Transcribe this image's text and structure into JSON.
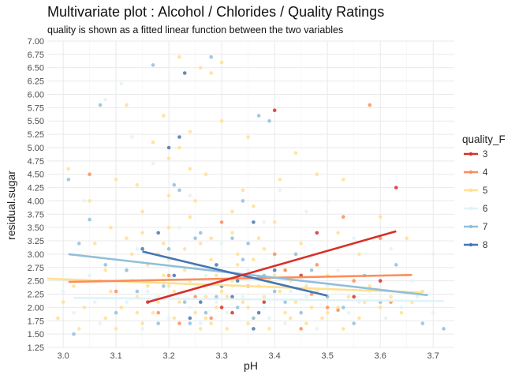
{
  "chart_data": {
    "type": "scatter",
    "title": "Multivariate plot : Alcohol / Chlorides / Quality Ratings",
    "subtitle": "quality is shown as a fitted linear function between the two variables",
    "xlabel": "pH",
    "ylabel": "residual.sugar",
    "xlim": [
      2.97,
      3.74
    ],
    "ylim": [
      1.25,
      7.0
    ],
    "xticks": [
      "3.0",
      "3.1",
      "3.2",
      "3.3",
      "3.4",
      "3.5",
      "3.6",
      "3.7"
    ],
    "yticks": [
      "1.25",
      "1.50",
      "1.75",
      "2.00",
      "2.25",
      "2.50",
      "2.75",
      "3.00",
      "3.25",
      "3.50",
      "3.75",
      "4.00",
      "4.25",
      "4.50",
      "4.75",
      "5.00",
      "5.25",
      "5.50",
      "5.75",
      "6.00",
      "6.25",
      "6.50",
      "6.75",
      "7.00"
    ],
    "grid": true,
    "legend": {
      "title": "quality_F",
      "position": "right"
    },
    "series": [
      {
        "name": "3",
        "color": "#d73027",
        "fit": [
          [
            3.16,
            2.1
          ],
          [
            3.63,
            3.43
          ]
        ],
        "points": [
          [
            3.16,
            2.1
          ],
          [
            3.4,
            5.7
          ],
          [
            3.63,
            4.25
          ],
          [
            3.48,
            3.4
          ],
          [
            3.32,
            1.9
          ],
          [
            3.38,
            2.1
          ],
          [
            3.45,
            2.6
          ],
          [
            3.55,
            2.2
          ],
          [
            3.3,
            2.0
          ],
          [
            3.6,
            2.5
          ]
        ]
      },
      {
        "name": "4",
        "color": "#fc8d59",
        "fit": [
          [
            3.01,
            2.48
          ],
          [
            3.66,
            2.61
          ]
        ],
        "points": [
          [
            3.05,
            4.5
          ],
          [
            3.4,
            3.0
          ],
          [
            3.58,
            5.8
          ],
          [
            3.48,
            2.8
          ],
          [
            3.53,
            3.7
          ],
          [
            3.6,
            3.3
          ],
          [
            3.2,
            2.6
          ],
          [
            3.1,
            2.3
          ],
          [
            3.35,
            2.4
          ],
          [
            3.5,
            2.0
          ],
          [
            3.25,
            2.2
          ],
          [
            3.42,
            2.7
          ],
          [
            3.55,
            2.5
          ],
          [
            3.45,
            1.6
          ],
          [
            3.3,
            3.6
          ],
          [
            3.18,
            1.9
          ],
          [
            3.62,
            2.1
          ],
          [
            3.22,
            1.7
          ],
          [
            3.37,
            2.55
          ],
          [
            3.28,
            1.8
          ],
          [
            3.47,
            2.25
          ],
          [
            3.52,
            1.95
          ]
        ]
      },
      {
        "name": "5",
        "color": "#fee090",
        "fit": [
          [
            2.97,
            2.54
          ],
          [
            3.68,
            2.28
          ]
        ],
        "points": [
          [
            3.22,
            6.7
          ],
          [
            3.26,
            6.5
          ],
          [
            3.28,
            6.4
          ],
          [
            3.3,
            6.6
          ],
          [
            3.12,
            5.8
          ],
          [
            3.19,
            5.6
          ],
          [
            3.24,
            5.3
          ],
          [
            3.2,
            4.8
          ],
          [
            3.24,
            4.6
          ],
          [
            3.1,
            4.4
          ],
          [
            3.2,
            4.1
          ],
          [
            3.05,
            4.0
          ],
          [
            3.15,
            3.8
          ],
          [
            3.01,
            4.6
          ],
          [
            3.26,
            3.2
          ],
          [
            3.34,
            4.2
          ],
          [
            3.36,
            3.9
          ],
          [
            3.4,
            3.6
          ],
          [
            3.32,
            3.4
          ],
          [
            3.2,
            3.5
          ],
          [
            3.12,
            3.3
          ],
          [
            3.06,
            3.2
          ],
          [
            3.18,
            3.0
          ],
          [
            3.28,
            2.9
          ],
          [
            3.38,
            3.1
          ],
          [
            3.42,
            2.7
          ],
          [
            3.45,
            3.2
          ],
          [
            3.52,
            3.4
          ],
          [
            3.56,
            3.0
          ],
          [
            3.5,
            2.6
          ],
          [
            3.46,
            2.4
          ],
          [
            3.24,
            3.7
          ],
          [
            3.16,
            2.8
          ],
          [
            3.08,
            2.7
          ],
          [
            3.02,
            2.4
          ],
          [
            3.04,
            2.0
          ],
          [
            3.08,
            1.8
          ],
          [
            3.1,
            1.6
          ],
          [
            3.14,
            2.2
          ],
          [
            3.2,
            2.4
          ],
          [
            3.22,
            2.1
          ],
          [
            3.25,
            1.9
          ],
          [
            3.28,
            1.7
          ],
          [
            3.3,
            2.3
          ],
          [
            3.32,
            2.5
          ],
          [
            3.35,
            2.0
          ],
          [
            3.36,
            1.8
          ],
          [
            3.38,
            2.2
          ],
          [
            3.4,
            2.6
          ],
          [
            3.42,
            1.9
          ],
          [
            3.44,
            2.1
          ],
          [
            3.46,
            1.7
          ],
          [
            3.48,
            2.3
          ],
          [
            3.5,
            1.9
          ],
          [
            3.52,
            2.0
          ],
          [
            3.54,
            2.2
          ],
          [
            3.56,
            1.8
          ],
          [
            3.58,
            2.4
          ],
          [
            3.6,
            2.0
          ],
          [
            3.62,
            2.2
          ],
          [
            3.64,
            1.9
          ],
          [
            3.66,
            2.1
          ],
          [
            3.68,
            2.3
          ],
          [
            3.13,
            2.5
          ],
          [
            3.17,
            1.9
          ],
          [
            3.19,
            2.6
          ],
          [
            3.21,
            1.8
          ],
          [
            3.23,
            2.7
          ],
          [
            3.27,
            2.2
          ],
          [
            3.29,
            2.0
          ],
          [
            3.31,
            1.6
          ],
          [
            3.33,
            2.8
          ],
          [
            3.37,
            2.4
          ],
          [
            3.39,
            1.6
          ],
          [
            3.41,
            2.3
          ],
          [
            3.43,
            1.8
          ],
          [
            3.47,
            2.0
          ],
          [
            3.11,
            2.0
          ],
          [
            3.09,
            2.3
          ],
          [
            3.07,
            2.5
          ],
          [
            3.15,
            1.7
          ],
          [
            3.24,
            2.5
          ],
          [
            3.26,
            1.6
          ],
          [
            3.34,
            2.1
          ],
          [
            3.29,
            2.6
          ],
          [
            3.21,
            2.3
          ],
          [
            3.18,
            2.1
          ],
          [
            3.16,
            2.4
          ],
          [
            3.14,
            1.9
          ],
          [
            3.12,
            2.7
          ],
          [
            3.27,
            1.8
          ],
          [
            3.31,
            2.2
          ],
          [
            3.35,
            1.7
          ],
          [
            3.39,
            2.5
          ],
          [
            3.43,
            2.5
          ],
          [
            3.49,
            1.8
          ],
          [
            3.53,
            1.6
          ],
          [
            3.57,
            2.1
          ],
          [
            2.99,
            1.8
          ],
          [
            3.0,
            2.1
          ],
          [
            3.03,
            1.6
          ],
          [
            3.22,
            5.0
          ],
          [
            3.27,
            4.5
          ],
          [
            3.3,
            5.5
          ],
          [
            3.14,
            4.3
          ],
          [
            3.17,
            5.1
          ],
          [
            3.35,
            5.2
          ],
          [
            3.44,
            4.9
          ],
          [
            3.48,
            4.5
          ],
          [
            3.6,
            3.7
          ],
          [
            3.65,
            3.3
          ],
          [
            3.53,
            4.4
          ],
          [
            3.09,
            3.5
          ],
          [
            3.25,
            4.0
          ],
          [
            3.37,
            3.3
          ],
          [
            3.41,
            4.4
          ],
          [
            3.15,
            3.4
          ],
          [
            3.32,
            3.8
          ],
          [
            3.28,
            3.3
          ],
          [
            3.23,
            3.1
          ],
          [
            3.19,
            3.2
          ],
          [
            3.33,
            3.0
          ],
          [
            3.36,
            2.9
          ],
          [
            3.44,
            3.0
          ],
          [
            3.25,
            2.8
          ],
          [
            3.13,
            3.0
          ],
          [
            3.2,
            2.9
          ]
        ]
      },
      {
        "name": "6",
        "color": "#e0f3f8",
        "fit": [
          [
            3.02,
            2.18
          ],
          [
            3.72,
            2.12
          ]
        ],
        "points": [
          [
            3.08,
            5.9
          ],
          [
            3.13,
            5.2
          ],
          [
            3.11,
            6.2
          ],
          [
            3.17,
            4.7
          ],
          [
            3.24,
            4.1
          ],
          [
            3.04,
            4.0
          ],
          [
            3.41,
            4.2
          ],
          [
            3.5,
            4.0
          ],
          [
            3.38,
            3.6
          ],
          [
            3.55,
            3.3
          ],
          [
            3.62,
            3.1
          ],
          [
            3.7,
            3.0
          ],
          [
            3.46,
            3.8
          ],
          [
            3.3,
            3.2
          ],
          [
            3.22,
            3.5
          ],
          [
            3.14,
            3.1
          ],
          [
            3.1,
            2.9
          ],
          [
            3.05,
            2.6
          ],
          [
            3.0,
            2.3
          ],
          [
            3.02,
            1.9
          ],
          [
            3.07,
            1.7
          ],
          [
            3.12,
            2.1
          ],
          [
            3.16,
            2.3
          ],
          [
            3.2,
            1.8
          ],
          [
            3.24,
            2.0
          ],
          [
            3.28,
            2.4
          ],
          [
            3.31,
            1.9
          ],
          [
            3.34,
            2.2
          ],
          [
            3.38,
            2.0
          ],
          [
            3.42,
            1.7
          ],
          [
            3.46,
            2.2
          ],
          [
            3.5,
            2.4
          ],
          [
            3.54,
            1.9
          ],
          [
            3.58,
            2.3
          ],
          [
            3.61,
            1.8
          ],
          [
            3.64,
            2.0
          ],
          [
            3.67,
            2.2
          ],
          [
            3.7,
            1.9
          ],
          [
            3.72,
            1.6
          ],
          [
            3.66,
            2.5
          ],
          [
            3.52,
            2.7
          ],
          [
            3.45,
            2.6
          ],
          [
            3.35,
            2.7
          ],
          [
            3.27,
            2.6
          ],
          [
            3.19,
            2.5
          ],
          [
            3.15,
            1.6
          ],
          [
            3.26,
            1.7
          ],
          [
            3.39,
            1.8
          ],
          [
            3.48,
            1.6
          ],
          [
            3.56,
            2.1
          ],
          [
            3.32,
            2.4
          ],
          [
            3.18,
            2.2
          ],
          [
            3.06,
            2.1
          ],
          [
            3.43,
            2.3
          ],
          [
            3.29,
            2.1
          ]
        ]
      },
      {
        "name": "7",
        "color": "#91bfdb",
        "fit": [
          [
            3.01,
            3.0
          ],
          [
            3.69,
            2.23
          ]
        ],
        "points": [
          [
            3.07,
            5.8
          ],
          [
            3.28,
            6.7
          ],
          [
            3.17,
            6.55
          ],
          [
            3.01,
            4.4
          ],
          [
            3.03,
            3.2
          ],
          [
            3.05,
            3.65
          ],
          [
            3.08,
            2.8
          ],
          [
            3.12,
            2.7
          ],
          [
            3.2,
            3.1
          ],
          [
            3.21,
            4.3
          ],
          [
            3.22,
            4.2
          ],
          [
            3.25,
            3.3
          ],
          [
            3.26,
            3.4
          ],
          [
            3.32,
            3.3
          ],
          [
            3.35,
            3.2
          ],
          [
            3.37,
            5.6
          ],
          [
            3.39,
            5.5
          ],
          [
            3.34,
            4.0
          ],
          [
            3.34,
            2.9
          ],
          [
            3.44,
            3.0
          ],
          [
            3.47,
            2.7
          ],
          [
            3.57,
            2.6
          ],
          [
            3.63,
            2.8
          ],
          [
            3.68,
            1.7
          ],
          [
            3.72,
            1.6
          ],
          [
            3.02,
            1.5
          ],
          [
            3.1,
            1.9
          ],
          [
            3.14,
            2.3
          ],
          [
            3.18,
            1.7
          ],
          [
            3.23,
            2.1
          ],
          [
            3.27,
            1.9
          ],
          [
            3.3,
            2.5
          ],
          [
            3.33,
            2.0
          ],
          [
            3.36,
            1.8
          ],
          [
            3.4,
            2.3
          ],
          [
            3.42,
            2.1
          ],
          [
            3.45,
            1.9
          ],
          [
            3.5,
            2.2
          ],
          [
            3.53,
            2.0
          ],
          [
            3.55,
            1.7
          ],
          [
            3.6,
            2.1
          ],
          [
            3.24,
            1.7
          ],
          [
            3.19,
            2.4
          ],
          [
            3.29,
            2.2
          ],
          [
            3.38,
            2.6
          ]
        ]
      },
      {
        "name": "8",
        "color": "#4575b4",
        "fit": [
          [
            3.15,
            3.05
          ],
          [
            3.5,
            2.22
          ]
        ],
        "points": [
          [
            3.23,
            6.4
          ],
          [
            3.22,
            5.2
          ],
          [
            3.36,
            3.6
          ],
          [
            3.2,
            5.0
          ],
          [
            3.18,
            3.4
          ],
          [
            3.15,
            3.1
          ],
          [
            3.24,
            1.8
          ],
          [
            3.3,
            2.4
          ],
          [
            3.33,
            2.5
          ],
          [
            3.36,
            1.6
          ],
          [
            3.4,
            2.7
          ],
          [
            3.29,
            2.8
          ],
          [
            3.37,
            1.9
          ],
          [
            3.26,
            2.1
          ],
          [
            3.32,
            2.2
          ],
          [
            3.21,
            2.6
          ]
        ]
      }
    ]
  }
}
